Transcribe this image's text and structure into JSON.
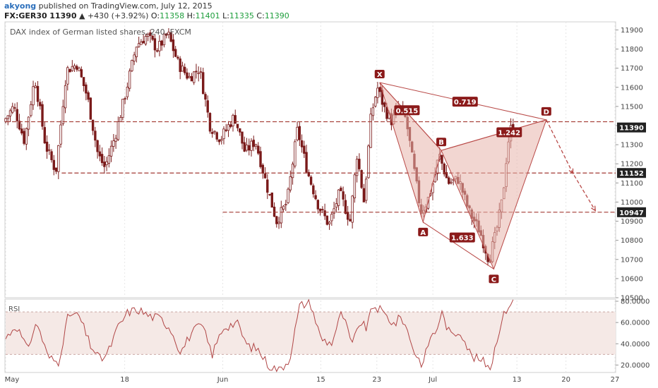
{
  "header": {
    "author": "akyong",
    "published_text": "published on TradingView.com, July 12, 2015",
    "symbol": "FX:GER30",
    "last": "11390",
    "change": "▲ +430 (+3.92%)",
    "open_label": "O:",
    "open": "11358",
    "high_label": "H:",
    "high": "11401",
    "low_label": "L:",
    "low": "11335",
    "close_label": "C:",
    "close": "11390"
  },
  "colors": {
    "up": "#1e9e3c",
    "candle": "#7a1a1a",
    "pattern_fill": "#e8b4ac",
    "pattern_line": "#b94a48",
    "label_bg": "#8b1a1a",
    "level": "#a33a33",
    "rsi": "#b04545",
    "rsi_band": "#f5e9e6"
  },
  "chart_data": [
    {
      "type": "candlestick",
      "title": "DAX index of German listed shares, 240, FXCM",
      "price_axis": {
        "ylim": [
          10500,
          11920
        ],
        "ticks": [
          10500,
          10600,
          10700,
          10800,
          10900,
          11000,
          11100,
          11200,
          11300,
          11400,
          11500,
          11600,
          11700,
          11800,
          11900
        ]
      },
      "time_axis": {
        "ticks": [
          {
            "label": "May",
            "day": 0
          },
          {
            "label": "18",
            "day": 17
          },
          {
            "label": "Jun",
            "day": 31
          },
          {
            "label": "15",
            "day": 45
          },
          {
            "label": "23",
            "day": 53
          },
          {
            "label": "Jul",
            "day": 61
          },
          {
            "label": "13",
            "day": 73
          },
          {
            "label": "20",
            "day": 80
          },
          {
            "label": "27",
            "day": 87
          }
        ],
        "last_bar_day": 72.5
      },
      "price_tags": [
        {
          "label": "11390",
          "value": 11390
        },
        {
          "label": "11152",
          "value": 11152
        },
        {
          "label": "10947",
          "value": 10947
        }
      ],
      "horizontal_levels": [
        {
          "value": 11420,
          "from_day": 0,
          "to_day": 96
        },
        {
          "value": 11152,
          "from_day": 8,
          "to_day": 96
        },
        {
          "value": 10947,
          "from_day": 31,
          "to_day": 96
        }
      ],
      "harmonic_pattern": {
        "points": [
          {
            "name": "X",
            "day": 53.4,
            "price": 11625
          },
          {
            "name": "A",
            "day": 59.6,
            "price": 10895
          },
          {
            "name": "B",
            "day": 62.2,
            "price": 11270
          },
          {
            "name": "C",
            "day": 69.7,
            "price": 10650
          },
          {
            "name": "D",
            "day": 77.2,
            "price": 11430
          }
        ],
        "ratios": [
          {
            "label": "0.515",
            "day": 57.3,
            "price": 11480
          },
          {
            "label": "0.719",
            "day": 65.6,
            "price": 11525
          },
          {
            "label": "1.242",
            "day": 71.9,
            "price": 11365
          },
          {
            "label": "1.633",
            "day": 65.2,
            "price": 10815
          }
        ],
        "projection": [
          {
            "day": 77.2,
            "price": 11430
          },
          {
            "day": 81.0,
            "price": 11150
          },
          {
            "day": 84.2,
            "price": 10955
          }
        ]
      },
      "anchors": [
        {
          "day": 0,
          "price": 11420
        },
        {
          "day": 1.5,
          "price": 11500
        },
        {
          "day": 3,
          "price": 11320
        },
        {
          "day": 4.5,
          "price": 11650
        },
        {
          "day": 6,
          "price": 11300
        },
        {
          "day": 7.5,
          "price": 11160
        },
        {
          "day": 9,
          "price": 11690
        },
        {
          "day": 10.5,
          "price": 11720
        },
        {
          "day": 12,
          "price": 11550
        },
        {
          "day": 13.5,
          "price": 11250
        },
        {
          "day": 14.5,
          "price": 11180
        },
        {
          "day": 16,
          "price": 11350
        },
        {
          "day": 17.5,
          "price": 11580
        },
        {
          "day": 19,
          "price": 11820
        },
        {
          "day": 20.5,
          "price": 11870
        },
        {
          "day": 22,
          "price": 11800
        },
        {
          "day": 23.5,
          "price": 11880
        },
        {
          "day": 25,
          "price": 11720
        },
        {
          "day": 26.5,
          "price": 11650
        },
        {
          "day": 28,
          "price": 11700
        },
        {
          "day": 29.5,
          "price": 11400
        },
        {
          "day": 31,
          "price": 11330
        },
        {
          "day": 33,
          "price": 11450
        },
        {
          "day": 34.5,
          "price": 11260
        },
        {
          "day": 36,
          "price": 11320
        },
        {
          "day": 37.5,
          "price": 11100
        },
        {
          "day": 39,
          "price": 10900
        },
        {
          "day": 40.5,
          "price": 11000
        },
        {
          "day": 42,
          "price": 11380
        },
        {
          "day": 43.5,
          "price": 11150
        },
        {
          "day": 45,
          "price": 10980
        },
        {
          "day": 46.5,
          "price": 10880
        },
        {
          "day": 48,
          "price": 11050
        },
        {
          "day": 49.5,
          "price": 10900
        },
        {
          "day": 50.5,
          "price": 11250
        },
        {
          "day": 51.5,
          "price": 11000
        },
        {
          "day": 52.5,
          "price": 11450
        },
        {
          "day": 53.4,
          "price": 11600
        },
        {
          "day": 54.5,
          "price": 11480
        },
        {
          "day": 55.5,
          "price": 11420
        },
        {
          "day": 56.5,
          "price": 11500
        },
        {
          "day": 57.5,
          "price": 11430
        },
        {
          "day": 58.5,
          "price": 11200
        },
        {
          "day": 59.6,
          "price": 10950
        },
        {
          "day": 60.5,
          "price": 11000
        },
        {
          "day": 61.5,
          "price": 11120
        },
        {
          "day": 62.2,
          "price": 11250
        },
        {
          "day": 63.5,
          "price": 11100
        },
        {
          "day": 65,
          "price": 11120
        },
        {
          "day": 66.5,
          "price": 10950
        },
        {
          "day": 68,
          "price": 10850
        },
        {
          "day": 69.3,
          "price": 10700
        },
        {
          "day": 70.3,
          "price": 10830
        },
        {
          "day": 71.3,
          "price": 11020
        },
        {
          "day": 72,
          "price": 11300
        },
        {
          "day": 72.5,
          "price": 11390
        }
      ]
    },
    {
      "type": "line",
      "title": "RSI",
      "ylim": [
        13,
        82
      ],
      "ticks": [
        {
          "label": "20.0000",
          "value": 20
        },
        {
          "label": "40.0000",
          "value": 40
        },
        {
          "label": "60.0000",
          "value": 60
        },
        {
          "label": "80.0000",
          "value": 80
        }
      ],
      "band": [
        30,
        70
      ],
      "anchors": [
        {
          "day": 0,
          "price": 45
        },
        {
          "day": 1.5,
          "price": 58
        },
        {
          "day": 3,
          "price": 35
        },
        {
          "day": 4.5,
          "price": 60
        },
        {
          "day": 6,
          "price": 28
        },
        {
          "day": 7.5,
          "price": 22
        },
        {
          "day": 9,
          "price": 68
        },
        {
          "day": 10.5,
          "price": 66
        },
        {
          "day": 12,
          "price": 40
        },
        {
          "day": 13.5,
          "price": 25
        },
        {
          "day": 14.5,
          "price": 30
        },
        {
          "day": 16,
          "price": 55
        },
        {
          "day": 17.5,
          "price": 70
        },
        {
          "day": 19,
          "price": 72
        },
        {
          "day": 20.5,
          "price": 66
        },
        {
          "day": 22,
          "price": 64
        },
        {
          "day": 23.5,
          "price": 55
        },
        {
          "day": 25,
          "price": 32
        },
        {
          "day": 26.5,
          "price": 50
        },
        {
          "day": 28,
          "price": 58
        },
        {
          "day": 29.5,
          "price": 30
        },
        {
          "day": 31,
          "price": 55
        },
        {
          "day": 33,
          "price": 60
        },
        {
          "day": 34.5,
          "price": 38
        },
        {
          "day": 36,
          "price": 35
        },
        {
          "day": 37.5,
          "price": 20
        },
        {
          "day": 39,
          "price": 15
        },
        {
          "day": 40.5,
          "price": 25
        },
        {
          "day": 42,
          "price": 76
        },
        {
          "day": 43.5,
          "price": 79
        },
        {
          "day": 45,
          "price": 45
        },
        {
          "day": 46.5,
          "price": 40
        },
        {
          "day": 48,
          "price": 70
        },
        {
          "day": 49.5,
          "price": 38
        },
        {
          "day": 50.5,
          "price": 60
        },
        {
          "day": 51.5,
          "price": 55
        },
        {
          "day": 52.5,
          "price": 76
        },
        {
          "day": 53.4,
          "price": 72
        },
        {
          "day": 54.5,
          "price": 65
        },
        {
          "day": 55.5,
          "price": 58
        },
        {
          "day": 56.5,
          "price": 66
        },
        {
          "day": 57.5,
          "price": 50
        },
        {
          "day": 58.5,
          "price": 30
        },
        {
          "day": 59.6,
          "price": 20
        },
        {
          "day": 60.5,
          "price": 45
        },
        {
          "day": 61.5,
          "price": 52
        },
        {
          "day": 62.2,
          "price": 70
        },
        {
          "day": 63.5,
          "price": 48
        },
        {
          "day": 65,
          "price": 52
        },
        {
          "day": 66.5,
          "price": 28
        },
        {
          "day": 68,
          "price": 24
        },
        {
          "day": 69.3,
          "price": 18
        },
        {
          "day": 70.3,
          "price": 50
        },
        {
          "day": 71.3,
          "price": 70
        },
        {
          "day": 72,
          "price": 78
        },
        {
          "day": 72.5,
          "price": 81
        }
      ]
    }
  ]
}
